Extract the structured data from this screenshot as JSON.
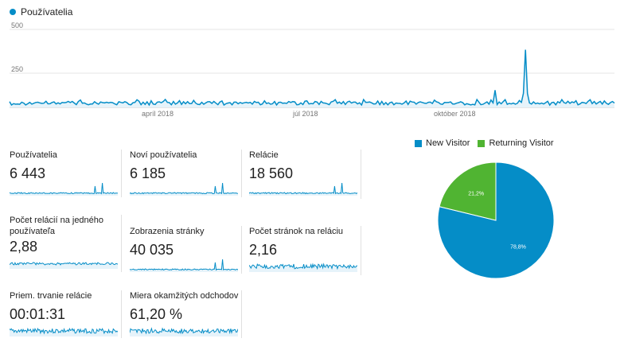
{
  "main_chart": {
    "legend_label": "Používatelia",
    "y_ticks": [
      "500",
      "250"
    ],
    "x_ticks": [
      "apríl 2018",
      "júl 2018",
      "október 2018"
    ],
    "series_color": "#058dc7"
  },
  "chart_data": [
    {
      "type": "area",
      "series": [
        {
          "name": "Používatelia"
        }
      ],
      "y_ticks": [
        250,
        500
      ],
      "x_tick_labels": [
        "apríl 2018",
        "júl 2018",
        "október 2018"
      ],
      "ylim": [
        0,
        500
      ],
      "notes": "daily users mostly ~15–40, spikes ~110 near mid-Oct and ~370 near late Oct 2018"
    },
    {
      "type": "pie",
      "title": "",
      "categories": [
        "New Visitor",
        "Returning Visitor"
      ],
      "values": [
        78.8,
        21.2
      ],
      "labels": [
        "78,8%",
        "21,2%"
      ],
      "colors": [
        "#058dc7",
        "#50b432"
      ]
    }
  ],
  "metrics": [
    {
      "label": "Používatelia",
      "value": "6 443"
    },
    {
      "label": "Noví používatelia",
      "value": "6 185"
    },
    {
      "label": "Relácie",
      "value": "18 560"
    },
    {
      "label": "Počet relácií na jedného používateľa",
      "value": "2,88"
    },
    {
      "label": "Zobrazenia stránky",
      "value": "40 035"
    },
    {
      "label": "Počet stránok na reláciu",
      "value": "2,16"
    },
    {
      "label": "Priem. trvanie relácie",
      "value": "00:01:31"
    },
    {
      "label": "Miera okamžitých odchodov",
      "value": "61,20 %"
    }
  ],
  "pie": {
    "legend": [
      {
        "label": "New Visitor",
        "color": "#058dc7"
      },
      {
        "label": "Returning Visitor",
        "color": "#50b432"
      }
    ],
    "slice_labels": [
      "78,8%",
      "21,2%"
    ]
  }
}
